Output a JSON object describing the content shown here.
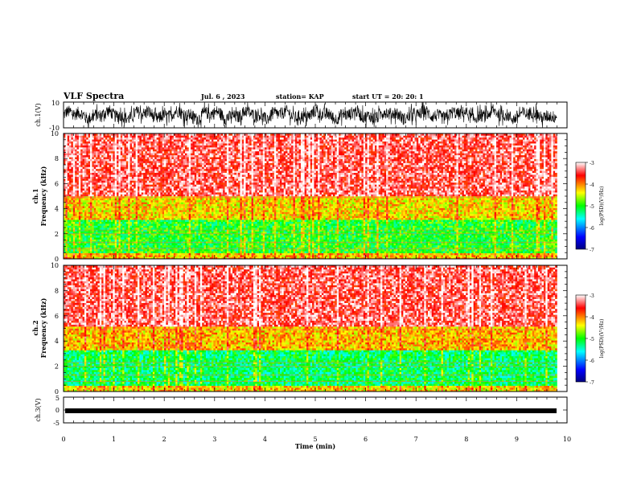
{
  "header": {
    "title": "VLF Spectra",
    "date": "Jul. 6 , 2023",
    "station": "station= KAP",
    "start": "start UT = 20: 20: 1"
  },
  "chart_data": [
    {
      "type": "line",
      "ylabel": "ch.1(V)",
      "ylim": [
        -10,
        10
      ],
      "yticks": [
        "10",
        "-10"
      ],
      "xlim": [
        0,
        10
      ],
      "description_kind": "broadband waveform amplitude"
    },
    {
      "type": "heatmap",
      "ylabel": "ch.1\nFrequency (kHz)",
      "ylim": [
        0,
        10
      ],
      "yticks": [
        "0",
        "2",
        "4",
        "6",
        "8",
        "10"
      ],
      "xlim": [
        0,
        10
      ],
      "colorbar": {
        "label": "log(PSD)(V²/Hz)",
        "range": [
          -7,
          -3
        ],
        "ticks": [
          "-3",
          "-4",
          "-5",
          "-6",
          "-7"
        ]
      },
      "bands": [
        {
          "freq_khz": [
            0,
            0.5
          ],
          "level": -4.2
        },
        {
          "freq_khz": [
            0.5,
            3.2
          ],
          "level": -5.0
        },
        {
          "freq_khz": [
            3.2,
            5.0
          ],
          "level": -4.3
        },
        {
          "freq_khz": [
            5.0,
            10.0
          ],
          "level": -3.4
        }
      ]
    },
    {
      "type": "heatmap",
      "ylabel": "ch.2\nFrequency (kHz)",
      "ylim": [
        0,
        10
      ],
      "yticks": [
        "0",
        "2",
        "4",
        "6",
        "8",
        "10"
      ],
      "xlim": [
        0,
        10
      ],
      "colorbar": {
        "label": "log(PSD)(V²/Hz)",
        "range": [
          -7,
          -3
        ],
        "ticks": [
          "-3",
          "-4",
          "-5",
          "-6",
          "-7"
        ]
      },
      "bands": [
        {
          "freq_khz": [
            0,
            0.5
          ],
          "level": -4.3
        },
        {
          "freq_khz": [
            0.5,
            3.3
          ],
          "level": -5.2
        },
        {
          "freq_khz": [
            3.3,
            5.2
          ],
          "level": -4.2
        },
        {
          "freq_khz": [
            5.2,
            10.0
          ],
          "level": -3.4
        }
      ]
    },
    {
      "type": "line",
      "ylabel": "ch.3(V)",
      "ylim": [
        -5,
        5
      ],
      "yticks": [
        "5",
        "0",
        "-5"
      ],
      "xlim": [
        0,
        10
      ],
      "xlabel": "Time (min)",
      "xticks": [
        "0",
        "1",
        "2",
        "3",
        "4",
        "5",
        "6",
        "7",
        "8",
        "9",
        "10"
      ],
      "series": [
        {
          "level_v": 0.0
        }
      ]
    }
  ],
  "colors": {
    "background": "#ffffff",
    "axis": "#000000",
    "trace": "#000000",
    "colormap": [
      "#00007f",
      "#0000ff",
      "#00ffff",
      "#00ff00",
      "#ffff00",
      "#ff0000",
      "#ffffff"
    ]
  }
}
